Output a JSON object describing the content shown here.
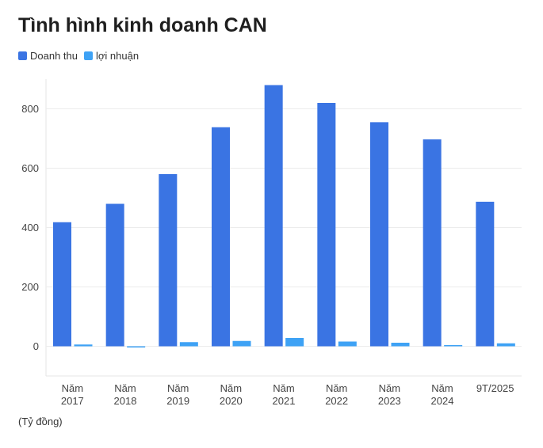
{
  "chart_data": {
    "type": "bar",
    "title": "Tình hình kinh doanh CAN",
    "categories": [
      [
        "Năm",
        "2017"
      ],
      [
        "Năm",
        "2018"
      ],
      [
        "Năm",
        "2019"
      ],
      [
        "Năm",
        "2020"
      ],
      [
        "Năm",
        "2021"
      ],
      [
        "Năm",
        "2022"
      ],
      [
        "Năm",
        "2023"
      ],
      [
        "Năm",
        "2024"
      ],
      [
        "9T/2025",
        ""
      ]
    ],
    "series": [
      {
        "name": "Doanh thu",
        "color": "#3a74e3",
        "values": [
          418,
          480,
          580,
          738,
          880,
          820,
          755,
          697,
          487
        ]
      },
      {
        "name": "lợi nhuận",
        "color": "#3ea2f5",
        "values": [
          6,
          -2,
          14,
          18,
          28,
          16,
          12,
          4,
          10
        ]
      }
    ],
    "y_ticks": [
      "800",
      "600",
      "400",
      "200",
      "0"
    ],
    "ylim": [
      -100,
      880
    ],
    "grid": true,
    "unit_note": "(Tỷ đồng)"
  }
}
